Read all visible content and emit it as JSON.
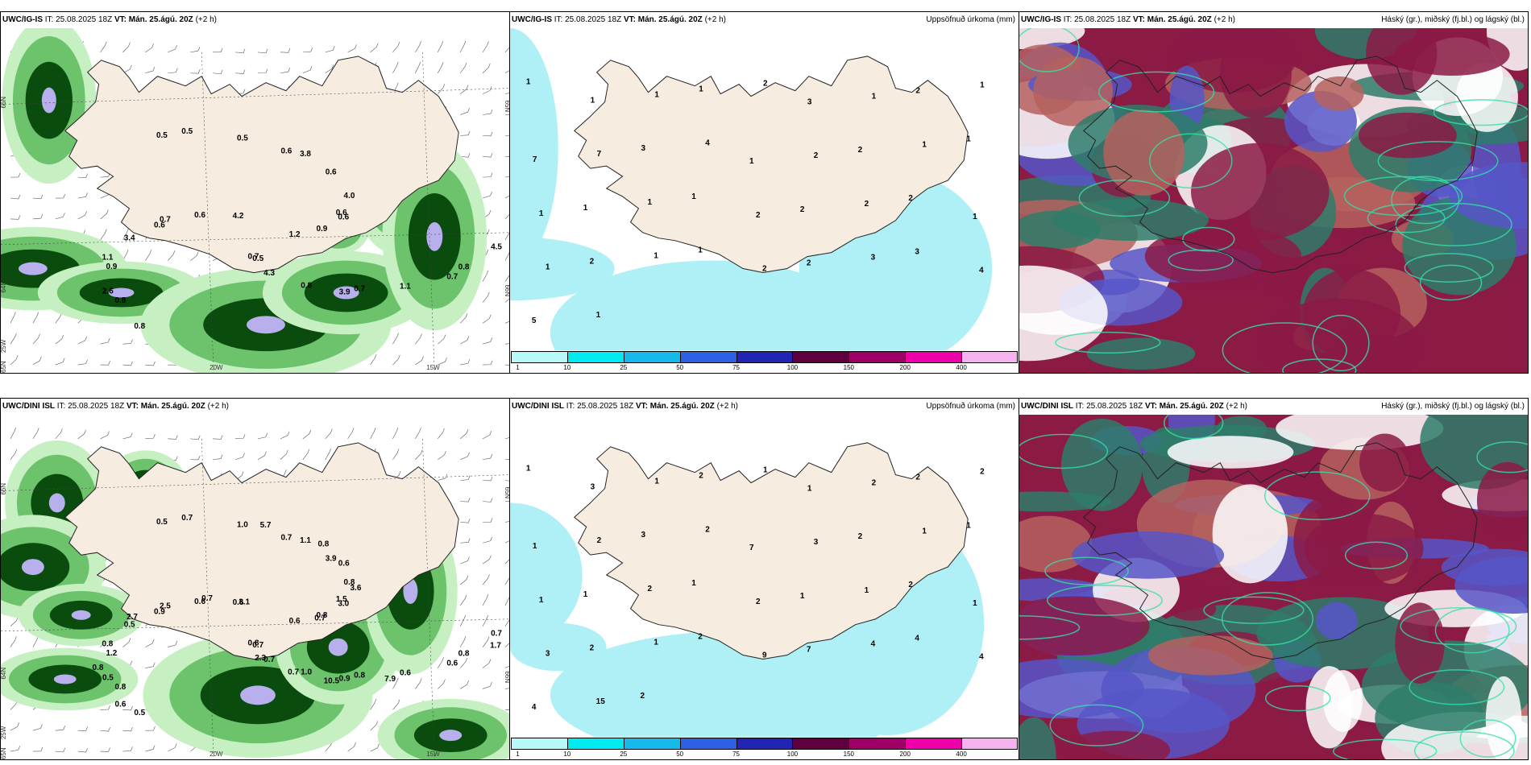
{
  "rows": [
    {
      "model": "UWC/IG-IS",
      "it_label": "IT:",
      "it_value": "25.08.2025 18Z",
      "vt_label": "VT:",
      "vt_value": "Mán. 25.ágú. 20Z",
      "lead": "(+2 h)",
      "precip_title": "Uppsöfnuð úrkoma (mm)",
      "cloud_title": "Háský (gr.), miðský (fj.bl.) og lágský (bl.)",
      "wind_labels": [
        "1.2",
        "0.8",
        "0.6",
        "0.7",
        "0.6",
        "0.6",
        "0.5",
        "0.5",
        "0.8",
        "0.9",
        "0.6",
        "0.8",
        "0.6",
        "0.9",
        "0.8",
        "0.5",
        "1.1",
        "3.4",
        "4.0",
        "4.3",
        "4.2",
        "4.5",
        "2.6",
        "3.8",
        "3.9",
        "0.7",
        "0.6",
        "0.7",
        "0.5",
        "0.7",
        "1.1"
      ],
      "precip_labels": [
        "1",
        "1",
        "1",
        "1",
        "2",
        "3",
        "1",
        "2",
        "1",
        "7",
        "7",
        "3",
        "4",
        "1",
        "2",
        "2",
        "1",
        "1",
        "1",
        "1",
        "1",
        "1",
        "2",
        "2",
        "2",
        "2",
        "1",
        "1",
        "2",
        "1",
        "1",
        "2",
        "2",
        "3",
        "3",
        "4",
        "5",
        "1"
      ],
      "axis_labels": [
        "66N",
        "64N",
        "65N",
        "25W",
        "20W",
        "15W",
        "65N",
        "66N"
      ]
    },
    {
      "model": "UWC/DINI ISL",
      "it_label": "IT:",
      "it_value": "25.08.2025 18Z",
      "vt_label": "VT:",
      "vt_value": "Mán. 25.ágú. 20Z",
      "lead": "(+2 h)",
      "precip_title": "Uppsöfnuð úrkoma (mm)",
      "cloud_title": "Háský (gr.), miðský (fj.bl.) og lágský (bl.)",
      "wind_labels": [
        "0.6",
        "0.8",
        "0.7",
        "0.8",
        "0.9",
        "1.5",
        "0.7",
        "0.5",
        "0.8",
        "1.2",
        "3.9",
        "1.0",
        "0.6",
        "0.8",
        "0.5",
        "1.0",
        "0.6",
        "0.5",
        "0.8",
        "0.7",
        "0.6",
        "0.7",
        "0.5",
        "1.1",
        "0.9",
        "2.5",
        "3.0",
        "0.8",
        "0.7",
        "0.6",
        "0.8",
        "0.6",
        "0.7",
        "0.7",
        "0.7",
        "0.6",
        "5.7",
        "7.9",
        "2.7",
        "3.6",
        "2.3",
        "3.1",
        "1.7",
        "0.8",
        "0.8",
        "10.5"
      ],
      "precip_labels": [
        "1",
        "3",
        "1",
        "2",
        "1",
        "1",
        "2",
        "2",
        "2",
        "1",
        "2",
        "3",
        "2",
        "7",
        "3",
        "2",
        "1",
        "1",
        "1",
        "1",
        "2",
        "1",
        "2",
        "1",
        "1",
        "2",
        "1",
        "3",
        "2",
        "1",
        "2",
        "9",
        "7",
        "4",
        "4",
        "4",
        "4",
        "15",
        "2"
      ],
      "axis_labels": [
        "66N",
        "64N",
        "65N",
        "25W",
        "20W",
        "15W",
        "65N",
        "66N"
      ]
    }
  ],
  "colorbar": {
    "ticks": [
      "1",
      "10",
      "25",
      "50",
      "75",
      "100",
      "150",
      "200",
      "400"
    ],
    "colors": [
      "#b9f8f8",
      "#00eaef",
      "#17b8ea",
      "#2f5fe3",
      "#2224b4",
      "#5e0040",
      "#9f0068",
      "#ee00a8",
      "#f6b1ef"
    ]
  },
  "palette": {
    "land": "#f7ece0",
    "sea_precip": "#aef0f5",
    "green_light": "#c6f0c2",
    "green_mid": "#6cc36c",
    "green_dark": "#0a4b0e",
    "purple_light": "#b8b0ec",
    "cloud_teal": "#2e7d6a",
    "cloud_maroon": "#8b1a45",
    "cloud_blue": "#5656c8",
    "cloud_brown": "#b5625e"
  }
}
